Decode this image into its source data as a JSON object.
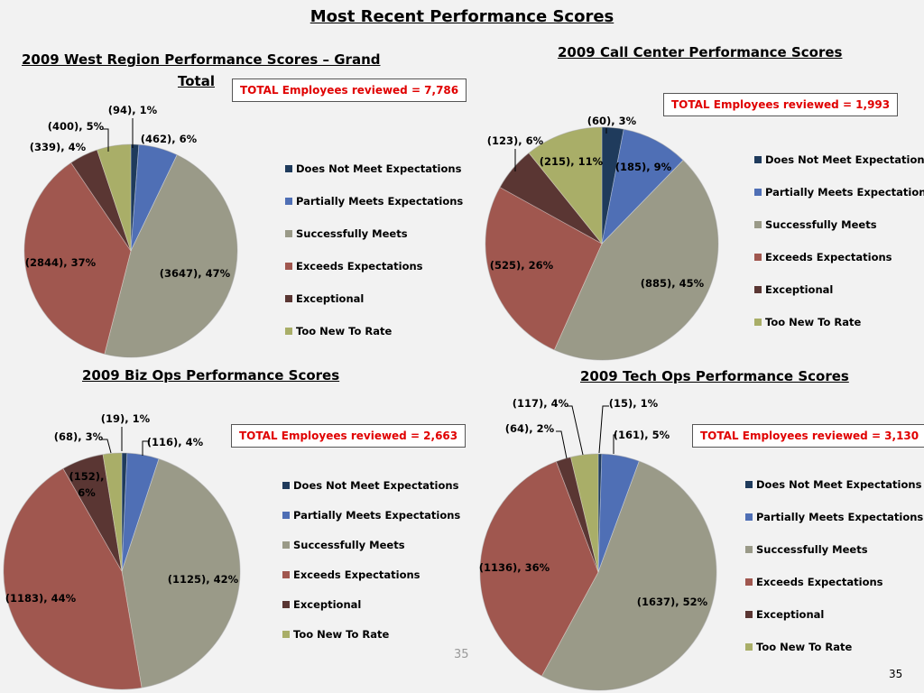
{
  "page": {
    "title": "Most Recent Performance Scores",
    "slide_number": "35",
    "page_number": "35"
  },
  "chart_data": [
    {
      "type": "pie",
      "title": "2009 West Region Performance Scores – Grand Total",
      "title_line1": "2009 West Region Performance Scores – Grand",
      "title_line2": "Total",
      "total_label": "TOTAL Employees reviewed = 7,786",
      "categories": [
        "Does Not Meet Expectations",
        "Partially Meets Expectations",
        "Successfully Meets",
        "Exceeds Expectations",
        "Exceptional",
        "Too New To Rate"
      ],
      "values": [
        94,
        462,
        3647,
        2844,
        339,
        400
      ],
      "data_labels": [
        "(94), 1%",
        "(462), 6%",
        "(3647), 47%",
        "(2844), 37%",
        "(339), 4%",
        "(400), 5%"
      ]
    },
    {
      "type": "pie",
      "title": "2009 Call Center Performance Scores",
      "total_label": "TOTAL Employees reviewed = 1,993",
      "categories": [
        "Does Not Meet Expectations",
        "Partially Meets Expectations",
        "Successfully Meets",
        "Exceeds Expectations",
        "Exceptional",
        "Too New To Rate"
      ],
      "values": [
        60,
        185,
        885,
        525,
        123,
        215
      ],
      "data_labels": [
        "(60), 3%",
        "(185), 9%",
        "(885), 45%",
        "(525), 26%",
        "(123), 6%",
        "(215), 11%"
      ]
    },
    {
      "type": "pie",
      "title": "2009 Biz Ops Performance Scores",
      "total_label": "TOTAL Employees reviewed = 2,663",
      "categories": [
        "Does Not Meet Expectations",
        "Partially Meets Expectations",
        "Successfully Meets",
        "Exceeds Expectations",
        "Exceptional",
        "Too New To Rate"
      ],
      "values": [
        19,
        116,
        1125,
        1183,
        152,
        68
      ],
      "data_labels": [
        "(19), 1%",
        "(116), 4%",
        "(1125), 42%",
        "(1183), 44%",
        "(152),\n6%",
        "(68), 3%"
      ]
    },
    {
      "type": "pie",
      "title": "2009 Tech Ops Performance Scores",
      "total_label": "TOTAL Employees reviewed = 3,130",
      "categories": [
        "Does Not Meet Expectations",
        "Partially Meets Expectations",
        "Successfully Meets",
        "Exceeds Expectations",
        "Exceptional",
        "Too New To Rate"
      ],
      "values": [
        15,
        161,
        1637,
        1136,
        64,
        117
      ],
      "data_labels": [
        "(15), 1%",
        "(161), 5%",
        "(1637), 52%",
        "(1136), 36%",
        "(64), 2%",
        "(117), 4%"
      ]
    }
  ],
  "colors": [
    "#1f3b5c",
    "#4f6fb5",
    "#9a9a88",
    "#a0574f",
    "#5a3633",
    "#a9ae68"
  ]
}
